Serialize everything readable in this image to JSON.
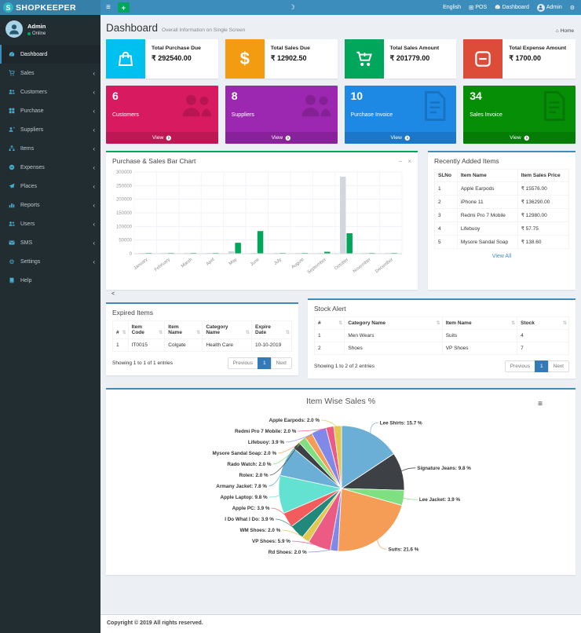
{
  "navbar": {
    "brand": "SHOPKEEPER",
    "logo_letter": "S",
    "right": {
      "language": "English",
      "pos": "POS",
      "dashboard": "Dashboard",
      "user": "Admin"
    }
  },
  "icons": {
    "menu": "hamburger",
    "add": "plus",
    "moon": "moon",
    "pos": "plus-square",
    "nav_dashboard": "tachometer",
    "nav_settings": "cogs",
    "avatar": "person",
    "home": "home",
    "view_arrow": "arrow-circle-right",
    "sort": "sort",
    "minimize": "minus",
    "close": "x",
    "chart_menu": "hamburger",
    "collapse": "angle-left"
  },
  "sidebar": {
    "user": {
      "name": "Admin",
      "status": "Online"
    },
    "items": [
      {
        "label": "Dashboard",
        "icon": "tachometer",
        "active": true,
        "arrow": false
      },
      {
        "label": "Sales",
        "icon": "cart",
        "active": false,
        "arrow": true
      },
      {
        "label": "Customers",
        "icon": "users",
        "active": false,
        "arrow": true
      },
      {
        "label": "Purchase",
        "icon": "grid",
        "active": false,
        "arrow": true
      },
      {
        "label": "Suppliers",
        "icon": "user-plus",
        "active": false,
        "arrow": true
      },
      {
        "label": "Items",
        "icon": "sitemap",
        "active": false,
        "arrow": true
      },
      {
        "label": "Expenses",
        "icon": "minus-circle",
        "active": false,
        "arrow": true
      },
      {
        "label": "Places",
        "icon": "paper-plane",
        "active": false,
        "arrow": true
      },
      {
        "label": "Reports",
        "icon": "bar-chart",
        "active": false,
        "arrow": true
      },
      {
        "label": "Users",
        "icon": "users",
        "active": false,
        "arrow": true
      },
      {
        "label": "SMS",
        "icon": "envelope",
        "active": false,
        "arrow": true
      },
      {
        "label": "Settings",
        "icon": "cogs",
        "active": false,
        "arrow": true
      },
      {
        "label": "Help",
        "icon": "book",
        "active": false,
        "arrow": false
      }
    ]
  },
  "content_header": {
    "title": "Dashboard",
    "subtitle": "Overall Information on Single Screen",
    "home": "Home"
  },
  "stat_cards": [
    {
      "label": "Total Purchase Due",
      "value": "₹ 292540.00",
      "color": "#00c0ef",
      "icon": "shopping-bag"
    },
    {
      "label": "Total Sales Due",
      "value": "₹ 12902.50",
      "color": "#f39c12",
      "icon": "dollar"
    },
    {
      "label": "Total Sales Amount",
      "value": "₹ 201779.00",
      "color": "#00a65a",
      "icon": "cart-plus"
    },
    {
      "label": "Total Expense Amount",
      "value": "₹ 1700.00",
      "color": "#dd4b39",
      "icon": "minus-square"
    }
  ],
  "count_cards": [
    {
      "count": "6",
      "label": "Customers",
      "color": "#d81b60",
      "icon": "users",
      "view": "View"
    },
    {
      "count": "8",
      "label": "Suppliers",
      "color": "#9c27b0",
      "icon": "users",
      "view": "View"
    },
    {
      "count": "10",
      "label": "Purchase Invoice",
      "color": "#1e88e5",
      "icon": "file-text",
      "view": "View"
    },
    {
      "count": "34",
      "label": "Sales Invoice",
      "color": "#068e06",
      "icon": "file-text",
      "view": "View"
    }
  ],
  "bar_card": {
    "title": "Purchase & Sales Bar Chart"
  },
  "recent_items": {
    "title": "Recently Added Items",
    "columns": [
      "SLNo",
      "Item Name",
      "Item Sales Price"
    ],
    "rows": [
      [
        "1",
        "Apple Earpods",
        "₹ 15576.00"
      ],
      [
        "2",
        "iPhone 11",
        "₹ 136290.00"
      ],
      [
        "3",
        "Redmi Pro 7 Mobile",
        "₹ 12980.00"
      ],
      [
        "4",
        "Lifebuoy",
        "₹ 57.75"
      ],
      [
        "5",
        "Mysore Sandal Soap",
        "₹ 138.60"
      ]
    ],
    "footer_link": "View All"
  },
  "stray_text": "<",
  "expired_items": {
    "title": "Expired Items",
    "columns": [
      "#",
      "Item Code",
      "Item Name",
      "Category Name",
      "Expire Date"
    ],
    "rows": [
      [
        "1",
        "IT0015",
        "Colgate",
        "Health Care",
        "10-10-2019"
      ]
    ],
    "info": "Showing 1 to 1 of 1 entries",
    "prev": "Previous",
    "page": "1",
    "next": "Next"
  },
  "stock_alert": {
    "title": "Stock Alert",
    "columns": [
      "#",
      "Category Name",
      "Item Name",
      "Stock"
    ],
    "rows": [
      [
        "1",
        "Men Wears",
        "Suits",
        "4"
      ],
      [
        "2",
        "Shoes",
        "VP Shoes",
        "7"
      ]
    ],
    "info": "Showing 1 to 2 of 2 entries",
    "prev": "Previous",
    "page": "1",
    "next": "Next"
  },
  "pie_card": {
    "title": "Item Wise Sales %"
  },
  "footer": {
    "copyright": "Copyright © 2019 All rights reserved."
  },
  "chart_data": [
    {
      "type": "bar",
      "title": "Purchase & Sales Bar Chart",
      "categories": [
        "January",
        "February",
        "March",
        "April",
        "May",
        "June",
        "July",
        "August",
        "September",
        "October",
        "November",
        "December"
      ],
      "series": [
        {
          "name": "Purchase",
          "color": "#d2d6de",
          "values": [
            2000,
            1500,
            1200,
            1000,
            9000,
            3000,
            800,
            800,
            1500,
            283000,
            600,
            600
          ]
        },
        {
          "name": "Sales",
          "color": "#00a65a",
          "values": [
            2500,
            2500,
            2500,
            2500,
            40000,
            83000,
            2500,
            2500,
            7000,
            75000,
            2500,
            2500
          ]
        }
      ],
      "xlabel": "",
      "ylabel": "",
      "ylim": [
        0,
        300000
      ],
      "ytick_step": 50000,
      "grid": true,
      "legend_position": "none"
    },
    {
      "type": "pie",
      "title": "Item Wise Sales %",
      "labels": [
        "Lee Shirts",
        "Signature Jeans",
        "Lee Jacket",
        "Suits",
        "Rd Shoes",
        "VP Shoes",
        "WM Shoes",
        "I Do What I Do",
        "Apple PC",
        "Apple Laptop",
        "Armany Jacket",
        "Rolex",
        "Rado Watch",
        "Mysore Sandal Soap",
        "Lifebuoy",
        "Redmi Pro 7 Mobile",
        "Apple Earpods"
      ],
      "values": [
        15.7,
        9.8,
        3.9,
        21.6,
        2.0,
        5.9,
        2.0,
        3.9,
        3.9,
        9.8,
        7.8,
        2.0,
        2.0,
        2.0,
        3.9,
        2.0,
        2.0
      ],
      "colors": [
        "#6baed6",
        "#3d4045",
        "#7ee081",
        "#f59d56",
        "#8089e8",
        "#ec5b83",
        "#e2c84f",
        "#21897b",
        "#f25c5c",
        "#63e2d1"
      ],
      "label_format": "name: value %",
      "legend_position": "callout-labels"
    }
  ]
}
